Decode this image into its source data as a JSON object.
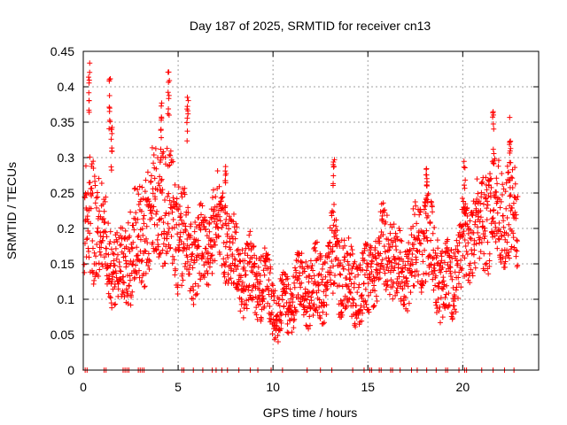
{
  "chart_data": {
    "type": "scatter",
    "title": "Day 187 of 2025, SRMTID for receiver cn13",
    "xlabel": "GPS time / hours",
    "ylabel": "SRMTID / TECUs",
    "xlim": [
      0,
      24
    ],
    "ylim": [
      0,
      0.45
    ],
    "xticks": [
      0,
      5,
      10,
      15,
      20
    ],
    "xtick_labels": [
      "0",
      "5",
      "10",
      "15",
      "20"
    ],
    "yticks": [
      0,
      0.05,
      0.1,
      0.15,
      0.2,
      0.25,
      0.3,
      0.35,
      0.4,
      0.45
    ],
    "ytick_labels": [
      "0",
      "0.05",
      "0.1",
      "0.15",
      "0.2",
      "0.25",
      "0.3",
      "0.35",
      "0.4",
      "0.45"
    ],
    "grid": true,
    "marker": "+",
    "color": "#ff0000",
    "trend": {
      "x": [
        0,
        0.5,
        1,
        1.5,
        2,
        2.5,
        3,
        3.5,
        4,
        4.5,
        5,
        5.5,
        6,
        6.5,
        7,
        7.5,
        8,
        8.5,
        9,
        9.5,
        10,
        10.5,
        11,
        11.5,
        12,
        12.5,
        13,
        13.5,
        14,
        14.5,
        15,
        15.5,
        16,
        16.5,
        17,
        17.5,
        18,
        18.5,
        19,
        19.5,
        20,
        20.5,
        21,
        21.5,
        22,
        22.5,
        23
      ],
      "y": [
        0.2,
        0.21,
        0.19,
        0.17,
        0.14,
        0.16,
        0.19,
        0.22,
        0.25,
        0.22,
        0.19,
        0.17,
        0.18,
        0.17,
        0.2,
        0.19,
        0.16,
        0.14,
        0.12,
        0.12,
        0.1,
        0.09,
        0.1,
        0.11,
        0.12,
        0.13,
        0.15,
        0.14,
        0.12,
        0.12,
        0.13,
        0.15,
        0.17,
        0.15,
        0.15,
        0.16,
        0.18,
        0.16,
        0.13,
        0.13,
        0.16,
        0.2,
        0.22,
        0.23,
        0.22,
        0.21,
        0.22
      ],
      "spread": [
        0.07,
        0.09,
        0.06,
        0.06,
        0.05,
        0.07,
        0.07,
        0.08,
        0.09,
        0.08,
        0.08,
        0.06,
        0.06,
        0.05,
        0.06,
        0.06,
        0.05,
        0.05,
        0.05,
        0.05,
        0.04,
        0.04,
        0.04,
        0.04,
        0.05,
        0.05,
        0.06,
        0.06,
        0.05,
        0.05,
        0.05,
        0.06,
        0.06,
        0.05,
        0.05,
        0.06,
        0.06,
        0.06,
        0.05,
        0.05,
        0.06,
        0.06,
        0.07,
        0.07,
        0.07,
        0.07,
        0.06
      ]
    },
    "peaks": [
      {
        "x": 0.3,
        "y": 0.44
      },
      {
        "x": 1.4,
        "y": 0.42
      },
      {
        "x": 1.5,
        "y": 0.35
      },
      {
        "x": 4.1,
        "y": 0.38
      },
      {
        "x": 4.5,
        "y": 0.43
      },
      {
        "x": 5.5,
        "y": 0.39
      },
      {
        "x": 7.5,
        "y": 0.3
      },
      {
        "x": 13.2,
        "y": 0.3
      },
      {
        "x": 18.1,
        "y": 0.31
      },
      {
        "x": 20.1,
        "y": 0.3
      },
      {
        "x": 21.6,
        "y": 0.37
      },
      {
        "x": 22.5,
        "y": 0.36
      }
    ],
    "zero_markers_x": [
      0.1,
      0.2,
      1.1,
      1.2,
      2.1,
      2.2,
      2.3,
      2.4,
      2.9,
      3.0,
      3.1,
      3.2,
      4.2,
      5.2,
      5.3,
      5.8,
      6.3,
      6.8,
      7.0,
      7.3,
      7.6,
      8.2,
      8.8,
      9.2,
      9.9,
      10.5,
      11.8,
      12.5,
      13.1,
      14.2,
      14.8,
      15.1,
      15.2,
      15.6,
      15.7,
      16.2,
      16.3,
      16.7,
      17.3,
      17.6,
      18.1,
      18.6,
      19.1,
      19.2,
      19.8,
      20.1,
      20.2,
      21.0,
      21.6,
      22.2,
      22.7
    ]
  }
}
